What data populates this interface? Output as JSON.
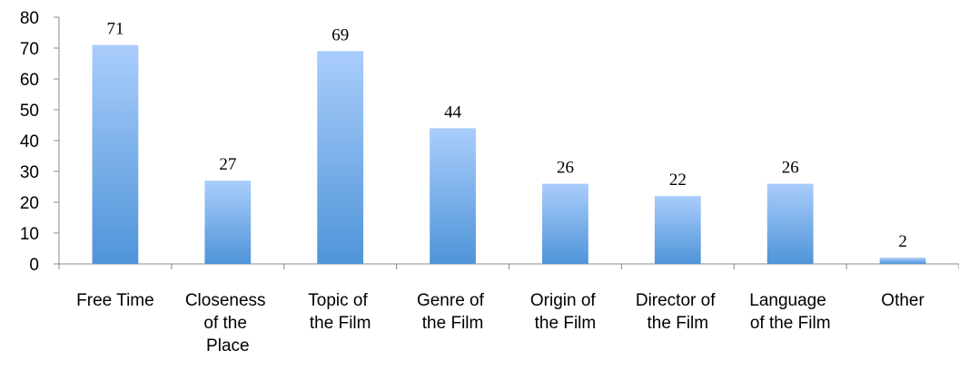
{
  "chart_data": {
    "type": "bar",
    "categories": [
      "Free Time",
      "Closeness of the Place",
      "Topic of the Film",
      "Genre of the Film",
      "Origin of the Film",
      "Director of the Film",
      "Language of the Film",
      "Other"
    ],
    "values": [
      71,
      27,
      69,
      44,
      26,
      22,
      26,
      2
    ],
    "color": "#5b9bd5",
    "ylim": [
      0,
      80
    ],
    "yticks": [
      0,
      10,
      20,
      30,
      40,
      50,
      60,
      70,
      80
    ],
    "grid": false
  }
}
